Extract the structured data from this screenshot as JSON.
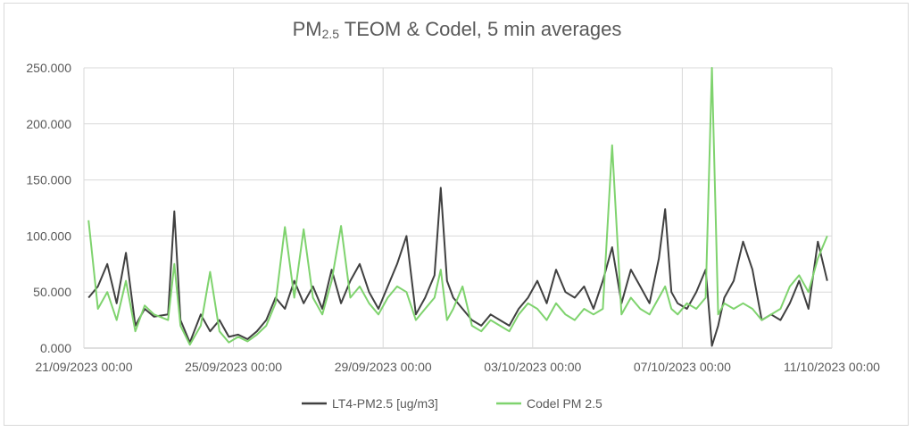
{
  "chart_data": {
    "type": "line",
    "title": {
      "prefix": "PM",
      "subscript": "2.5",
      "suffix": " TEOM & Codel, 5 min averages"
    },
    "xlabel": "",
    "ylabel": "",
    "ylim": [
      0,
      250
    ],
    "xlim": [
      "2023-09-21 00:00",
      "2023-10-11 00:00"
    ],
    "y_ticks": [
      "0.000",
      "50.000",
      "100.000",
      "150.000",
      "200.000",
      "250.000"
    ],
    "x_ticks": [
      "21/09/2023 00:00",
      "25/09/2023 00:00",
      "29/09/2023 00:00",
      "03/10/2023 00:00",
      "07/10/2023 00:00",
      "11/10/2023 00:00"
    ],
    "grid": "vertical-and-horizontal",
    "legend_position": "bottom",
    "series": [
      {
        "name": "LT4-PM2.5 [ug/m3]",
        "color": "#404040",
        "points": [
          [
            "2023-09-21 03:00",
            45
          ],
          [
            "2023-09-21 09:00",
            55
          ],
          [
            "2023-09-21 15:00",
            75
          ],
          [
            "2023-09-21 21:00",
            40
          ],
          [
            "2023-09-22 03:00",
            85
          ],
          [
            "2023-09-22 09:00",
            20
          ],
          [
            "2023-09-22 15:00",
            35
          ],
          [
            "2023-09-22 21:00",
            28
          ],
          [
            "2023-09-23 06:00",
            30
          ],
          [
            "2023-09-23 10:00",
            122
          ],
          [
            "2023-09-23 14:00",
            25
          ],
          [
            "2023-09-23 20:00",
            5
          ],
          [
            "2023-09-24 03:00",
            30
          ],
          [
            "2023-09-24 09:00",
            15
          ],
          [
            "2023-09-24 15:00",
            25
          ],
          [
            "2023-09-24 21:00",
            10
          ],
          [
            "2023-09-25 03:00",
            12
          ],
          [
            "2023-09-25 09:00",
            8
          ],
          [
            "2023-09-25 15:00",
            15
          ],
          [
            "2023-09-25 21:00",
            25
          ],
          [
            "2023-09-26 03:00",
            45
          ],
          [
            "2023-09-26 09:00",
            35
          ],
          [
            "2023-09-26 15:00",
            60
          ],
          [
            "2023-09-26 21:00",
            40
          ],
          [
            "2023-09-27 03:00",
            55
          ],
          [
            "2023-09-27 09:00",
            35
          ],
          [
            "2023-09-27 15:00",
            70
          ],
          [
            "2023-09-27 21:00",
            40
          ],
          [
            "2023-09-28 03:00",
            60
          ],
          [
            "2023-09-28 09:00",
            75
          ],
          [
            "2023-09-28 15:00",
            50
          ],
          [
            "2023-09-28 21:00",
            35
          ],
          [
            "2023-09-29 03:00",
            55
          ],
          [
            "2023-09-29 09:00",
            75
          ],
          [
            "2023-09-29 15:00",
            100
          ],
          [
            "2023-09-29 21:00",
            30
          ],
          [
            "2023-09-30 03:00",
            45
          ],
          [
            "2023-09-30 09:00",
            65
          ],
          [
            "2023-09-30 13:00",
            143
          ],
          [
            "2023-09-30 17:00",
            60
          ],
          [
            "2023-09-30 21:00",
            45
          ],
          [
            "2023-10-01 03:00",
            35
          ],
          [
            "2023-10-01 09:00",
            25
          ],
          [
            "2023-10-01 15:00",
            20
          ],
          [
            "2023-10-01 21:00",
            30
          ],
          [
            "2023-10-02 03:00",
            25
          ],
          [
            "2023-10-02 09:00",
            20
          ],
          [
            "2023-10-02 15:00",
            35
          ],
          [
            "2023-10-02 21:00",
            45
          ],
          [
            "2023-10-03 03:00",
            60
          ],
          [
            "2023-10-03 09:00",
            40
          ],
          [
            "2023-10-03 15:00",
            70
          ],
          [
            "2023-10-03 21:00",
            50
          ],
          [
            "2023-10-04 03:00",
            45
          ],
          [
            "2023-10-04 09:00",
            55
          ],
          [
            "2023-10-04 15:00",
            35
          ],
          [
            "2023-10-04 21:00",
            60
          ],
          [
            "2023-10-05 03:00",
            90
          ],
          [
            "2023-10-05 09:00",
            40
          ],
          [
            "2023-10-05 15:00",
            70
          ],
          [
            "2023-10-05 21:00",
            55
          ],
          [
            "2023-10-06 03:00",
            40
          ],
          [
            "2023-10-06 09:00",
            80
          ],
          [
            "2023-10-06 13:00",
            124
          ],
          [
            "2023-10-06 17:00",
            50
          ],
          [
            "2023-10-06 21:00",
            40
          ],
          [
            "2023-10-07 03:00",
            35
          ],
          [
            "2023-10-07 09:00",
            50
          ],
          [
            "2023-10-07 15:00",
            70
          ],
          [
            "2023-10-07 19:00",
            2
          ],
          [
            "2023-10-07 23:00",
            20
          ],
          [
            "2023-10-08 03:00",
            45
          ],
          [
            "2023-10-08 09:00",
            60
          ],
          [
            "2023-10-08 15:00",
            95
          ],
          [
            "2023-10-08 21:00",
            70
          ],
          [
            "2023-10-09 03:00",
            25
          ],
          [
            "2023-10-09 09:00",
            30
          ],
          [
            "2023-10-09 15:00",
            25
          ],
          [
            "2023-10-09 21:00",
            40
          ],
          [
            "2023-10-10 03:00",
            60
          ],
          [
            "2023-10-10 09:00",
            35
          ],
          [
            "2023-10-10 15:00",
            95
          ],
          [
            "2023-10-10 21:00",
            60
          ]
        ]
      },
      {
        "name": "Codel PM 2.5",
        "color": "#7fd36e",
        "points": [
          [
            "2023-09-21 03:00",
            114
          ],
          [
            "2023-09-21 09:00",
            35
          ],
          [
            "2023-09-21 15:00",
            50
          ],
          [
            "2023-09-21 21:00",
            25
          ],
          [
            "2023-09-22 03:00",
            60
          ],
          [
            "2023-09-22 09:00",
            15
          ],
          [
            "2023-09-22 15:00",
            38
          ],
          [
            "2023-09-22 21:00",
            30
          ],
          [
            "2023-09-23 06:00",
            25
          ],
          [
            "2023-09-23 10:00",
            75
          ],
          [
            "2023-09-23 14:00",
            20
          ],
          [
            "2023-09-23 20:00",
            3
          ],
          [
            "2023-09-24 03:00",
            20
          ],
          [
            "2023-09-24 09:00",
            68
          ],
          [
            "2023-09-24 15:00",
            15
          ],
          [
            "2023-09-24 21:00",
            5
          ],
          [
            "2023-09-25 03:00",
            10
          ],
          [
            "2023-09-25 09:00",
            6
          ],
          [
            "2023-09-25 15:00",
            12
          ],
          [
            "2023-09-25 21:00",
            20
          ],
          [
            "2023-09-26 03:00",
            40
          ],
          [
            "2023-09-26 09:00",
            108
          ],
          [
            "2023-09-26 15:00",
            45
          ],
          [
            "2023-09-26 21:00",
            106
          ],
          [
            "2023-09-27 03:00",
            45
          ],
          [
            "2023-09-27 09:00",
            30
          ],
          [
            "2023-09-27 15:00",
            60
          ],
          [
            "2023-09-27 21:00",
            109
          ],
          [
            "2023-09-28 03:00",
            45
          ],
          [
            "2023-09-28 09:00",
            55
          ],
          [
            "2023-09-28 15:00",
            40
          ],
          [
            "2023-09-28 21:00",
            30
          ],
          [
            "2023-09-29 03:00",
            45
          ],
          [
            "2023-09-29 09:00",
            55
          ],
          [
            "2023-09-29 15:00",
            50
          ],
          [
            "2023-09-29 21:00",
            25
          ],
          [
            "2023-09-30 03:00",
            35
          ],
          [
            "2023-09-30 09:00",
            45
          ],
          [
            "2023-09-30 13:00",
            70
          ],
          [
            "2023-09-30 17:00",
            25
          ],
          [
            "2023-09-30 21:00",
            35
          ],
          [
            "2023-10-01 03:00",
            55
          ],
          [
            "2023-10-01 09:00",
            20
          ],
          [
            "2023-10-01 15:00",
            15
          ],
          [
            "2023-10-01 21:00",
            25
          ],
          [
            "2023-10-02 03:00",
            20
          ],
          [
            "2023-10-02 09:00",
            15
          ],
          [
            "2023-10-02 15:00",
            30
          ],
          [
            "2023-10-02 21:00",
            40
          ],
          [
            "2023-10-03 03:00",
            35
          ],
          [
            "2023-10-03 09:00",
            25
          ],
          [
            "2023-10-03 15:00",
            40
          ],
          [
            "2023-10-03 21:00",
            30
          ],
          [
            "2023-10-04 03:00",
            25
          ],
          [
            "2023-10-04 09:00",
            35
          ],
          [
            "2023-10-04 15:00",
            30
          ],
          [
            "2023-10-04 21:00",
            35
          ],
          [
            "2023-10-05 03:00",
            181
          ],
          [
            "2023-10-05 09:00",
            30
          ],
          [
            "2023-10-05 15:00",
            45
          ],
          [
            "2023-10-05 21:00",
            35
          ],
          [
            "2023-10-06 03:00",
            30
          ],
          [
            "2023-10-06 09:00",
            45
          ],
          [
            "2023-10-06 13:00",
            55
          ],
          [
            "2023-10-06 17:00",
            35
          ],
          [
            "2023-10-06 21:00",
            30
          ],
          [
            "2023-10-07 03:00",
            40
          ],
          [
            "2023-10-07 09:00",
            35
          ],
          [
            "2023-10-07 15:00",
            45
          ],
          [
            "2023-10-07 19:00",
            250
          ],
          [
            "2023-10-07 23:00",
            30
          ],
          [
            "2023-10-08 03:00",
            40
          ],
          [
            "2023-10-08 09:00",
            35
          ],
          [
            "2023-10-08 15:00",
            40
          ],
          [
            "2023-10-08 21:00",
            35
          ],
          [
            "2023-10-09 03:00",
            25
          ],
          [
            "2023-10-09 09:00",
            30
          ],
          [
            "2023-10-09 15:00",
            35
          ],
          [
            "2023-10-09 21:00",
            55
          ],
          [
            "2023-10-10 03:00",
            65
          ],
          [
            "2023-10-10 09:00",
            50
          ],
          [
            "2023-10-10 15:00",
            80
          ],
          [
            "2023-10-10 21:00",
            100
          ]
        ]
      }
    ]
  }
}
